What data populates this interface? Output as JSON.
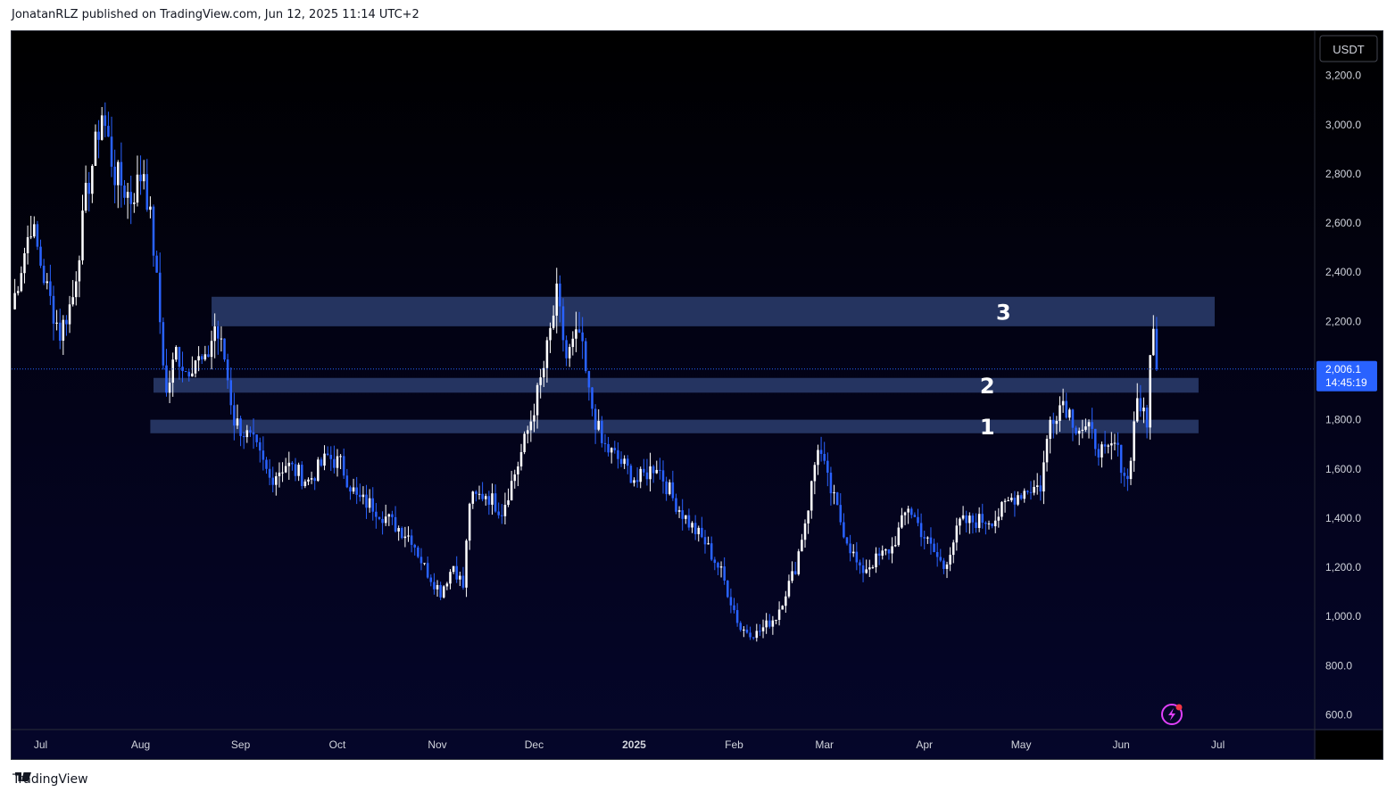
{
  "header": {
    "publisher_line": "JonatanRLZ published on TradingView.com, Jun 12, 2025 11:14 UTC+2"
  },
  "footer": {
    "brand": "TradingView"
  },
  "colors": {
    "up_candle": "#ffffff",
    "down_candle": "#2962ff",
    "zone_fill": "#2b3d6e",
    "price_label_bg": "#2962ff",
    "grid_text": "#d1d4dc",
    "alert_icon": "#e040fb"
  },
  "chart_data": {
    "type": "candlestick",
    "currency": "USDT",
    "y_ticks": [
      "3,200.0",
      "3,000.0",
      "2,800.0",
      "2,600.0",
      "2,400.0",
      "2,200.0",
      "1,800.0",
      "1,600.0",
      "1,400.0",
      "1,200.0",
      "1,000.0",
      "800.0",
      "600.0"
    ],
    "y_tick_values": [
      3200,
      3000,
      2800,
      2600,
      2400,
      2200,
      1800,
      1600,
      1400,
      1200,
      1000,
      800,
      600
    ],
    "ylim": [
      540,
      3380
    ],
    "x_ticks": [
      "Jul",
      "Aug",
      "Sep",
      "Oct",
      "Nov",
      "Dec",
      "2025",
      "Feb",
      "Mar",
      "Apr",
      "May",
      "Jun",
      "Jul"
    ],
    "x_tick_dates": [
      "2024-07-01",
      "2024-08-01",
      "2024-09-01",
      "2024-10-01",
      "2024-11-01",
      "2024-12-01",
      "2025-01-01",
      "2025-02-01",
      "2025-03-01",
      "2025-04-01",
      "2025-05-01",
      "2025-06-01",
      "2025-07-01"
    ],
    "x_range": [
      "2024-06-22",
      "2025-07-31"
    ],
    "last_price": "2,006.1",
    "last_price_value": 2006.1,
    "countdown": "14:45:19",
    "zones": [
      {
        "label": "3",
        "start": "2024-08-23",
        "end": "2025-06-30",
        "low": 2180,
        "high": 2300
      },
      {
        "label": "2",
        "start": "2024-08-05",
        "end": "2025-06-25",
        "low": 1910,
        "high": 1970
      },
      {
        "label": "1",
        "start": "2024-08-04",
        "end": "2025-06-25",
        "low": 1745,
        "high": 1800
      }
    ],
    "closes_anchors": [
      [
        "2024-06-22",
        2250
      ],
      [
        "2024-06-28",
        2600
      ],
      [
        "2024-07-03",
        2330
      ],
      [
        "2024-07-07",
        2150
      ],
      [
        "2024-07-11",
        2300
      ],
      [
        "2024-07-15",
        2700
      ],
      [
        "2024-07-20",
        3050
      ],
      [
        "2024-07-24",
        2800
      ],
      [
        "2024-07-29",
        2700
      ],
      [
        "2024-08-02",
        2820
      ],
      [
        "2024-08-05",
        2500
      ],
      [
        "2024-08-07",
        2200
      ],
      [
        "2024-08-09",
        1900
      ],
      [
        "2024-08-12",
        2080
      ],
      [
        "2024-08-15",
        2000
      ],
      [
        "2024-08-18",
        2050
      ],
      [
        "2024-08-21",
        2020
      ],
      [
        "2024-08-24",
        2180
      ],
      [
        "2024-08-27",
        2050
      ],
      [
        "2024-08-30",
        1800
      ],
      [
        "2024-09-05",
        1700
      ],
      [
        "2024-09-10",
        1560
      ],
      [
        "2024-09-15",
        1620
      ],
      [
        "2024-09-22",
        1550
      ],
      [
        "2024-09-28",
        1650
      ],
      [
        "2024-10-02",
        1620
      ],
      [
        "2024-10-07",
        1480
      ],
      [
        "2024-10-12",
        1450
      ],
      [
        "2024-10-18",
        1380
      ],
      [
        "2024-10-24",
        1320
      ],
      [
        "2024-10-28",
        1200
      ],
      [
        "2024-11-02",
        1100
      ],
      [
        "2024-11-06",
        1210
      ],
      [
        "2024-11-09",
        1120
      ],
      [
        "2024-11-11",
        1470
      ],
      [
        "2024-11-16",
        1500
      ],
      [
        "2024-11-21",
        1430
      ],
      [
        "2024-11-26",
        1620
      ],
      [
        "2024-11-30",
        1800
      ],
      [
        "2024-12-04",
        2010
      ],
      [
        "2024-12-08",
        2300
      ],
      [
        "2024-12-11",
        2050
      ],
      [
        "2024-12-15",
        2150
      ],
      [
        "2024-12-18",
        1900
      ],
      [
        "2024-12-22",
        1700
      ],
      [
        "2024-12-27",
        1640
      ],
      [
        "2025-01-02",
        1550
      ],
      [
        "2025-01-08",
        1620
      ],
      [
        "2025-01-13",
        1480
      ],
      [
        "2025-01-18",
        1380
      ],
      [
        "2025-01-23",
        1300
      ],
      [
        "2025-01-28",
        1180
      ],
      [
        "2025-02-03",
        950
      ],
      [
        "2025-02-08",
        930
      ],
      [
        "2025-02-14",
        1000
      ],
      [
        "2025-02-20",
        1200
      ],
      [
        "2025-02-24",
        1450
      ],
      [
        "2025-02-27",
        1700
      ],
      [
        "2025-03-02",
        1550
      ],
      [
        "2025-03-07",
        1350
      ],
      [
        "2025-03-12",
        1180
      ],
      [
        "2025-03-17",
        1230
      ],
      [
        "2025-03-22",
        1280
      ],
      [
        "2025-03-27",
        1450
      ],
      [
        "2025-04-02",
        1300
      ],
      [
        "2025-04-07",
        1200
      ],
      [
        "2025-04-12",
        1380
      ],
      [
        "2025-04-18",
        1390
      ],
      [
        "2025-04-23",
        1400
      ],
      [
        "2025-04-28",
        1480
      ],
      [
        "2025-05-03",
        1520
      ],
      [
        "2025-05-07",
        1530
      ],
      [
        "2025-05-10",
        1800
      ],
      [
        "2025-05-14",
        1880
      ],
      [
        "2025-05-18",
        1780
      ],
      [
        "2025-05-22",
        1750
      ],
      [
        "2025-05-27",
        1650
      ],
      [
        "2025-05-30",
        1700
      ],
      [
        "2025-06-03",
        1550
      ],
      [
        "2025-06-06",
        1900
      ],
      [
        "2025-06-09",
        1760
      ],
      [
        "2025-06-10",
        2100
      ],
      [
        "2025-06-11",
        2150
      ],
      [
        "2025-06-12",
        2006
      ]
    ]
  }
}
